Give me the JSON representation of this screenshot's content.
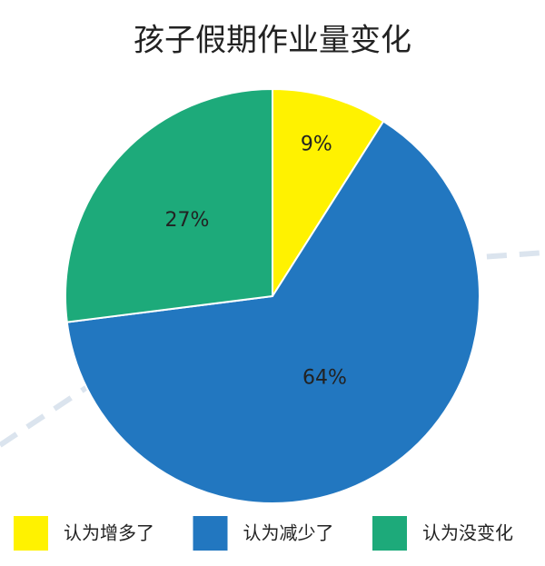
{
  "chart_data": {
    "type": "pie",
    "title": "孩子假期作业量变化",
    "categories": [
      "认为增多了",
      "认为减少了",
      "认为没变化"
    ],
    "values": [
      9,
      64,
      27
    ],
    "value_labels": [
      "9%",
      "64%",
      "27%"
    ],
    "colors": [
      "#fff200",
      "#2277c0",
      "#1daa7a"
    ]
  }
}
